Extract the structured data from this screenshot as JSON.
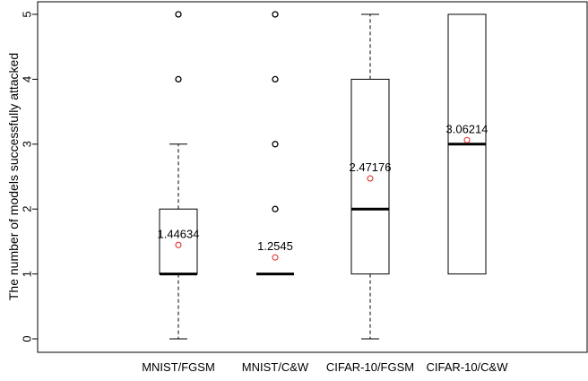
{
  "chart_data": {
    "type": "boxplot",
    "ylabel": "The number of models successfully attacked",
    "xlabel": "",
    "title": "",
    "ylim": [
      0,
      5
    ],
    "yticks": [
      "0",
      "1",
      "2",
      "3",
      "4",
      "5"
    ],
    "grid": false,
    "colors": {
      "box": "#000000",
      "mean": "#e0201c"
    },
    "categories": [
      "MNIST/FGSM",
      "MNIST/C&W",
      "CIFAR-10/FGSM",
      "CIFAR-10/C&W"
    ],
    "boxes": [
      {
        "min": 0,
        "q1": 1,
        "median": 1,
        "q3": 2,
        "max": 3,
        "outliers": [
          4,
          5
        ],
        "mean": 1.44634,
        "mean_label": "1.44634"
      },
      {
        "min": 1,
        "q1": 1,
        "median": 1,
        "q3": 1,
        "max": 1,
        "outliers": [
          2,
          3,
          4,
          5
        ],
        "mean": 1.2545,
        "mean_label": "1.2545"
      },
      {
        "min": 0,
        "q1": 1,
        "median": 2,
        "q3": 4,
        "max": 5,
        "outliers": [],
        "mean": 2.47176,
        "mean_label": "2.47176"
      },
      {
        "min": 1,
        "q1": 1,
        "median": 3,
        "q3": 5,
        "max": 5,
        "outliers": [],
        "mean": 3.06214,
        "mean_label": "3.06214"
      }
    ]
  }
}
